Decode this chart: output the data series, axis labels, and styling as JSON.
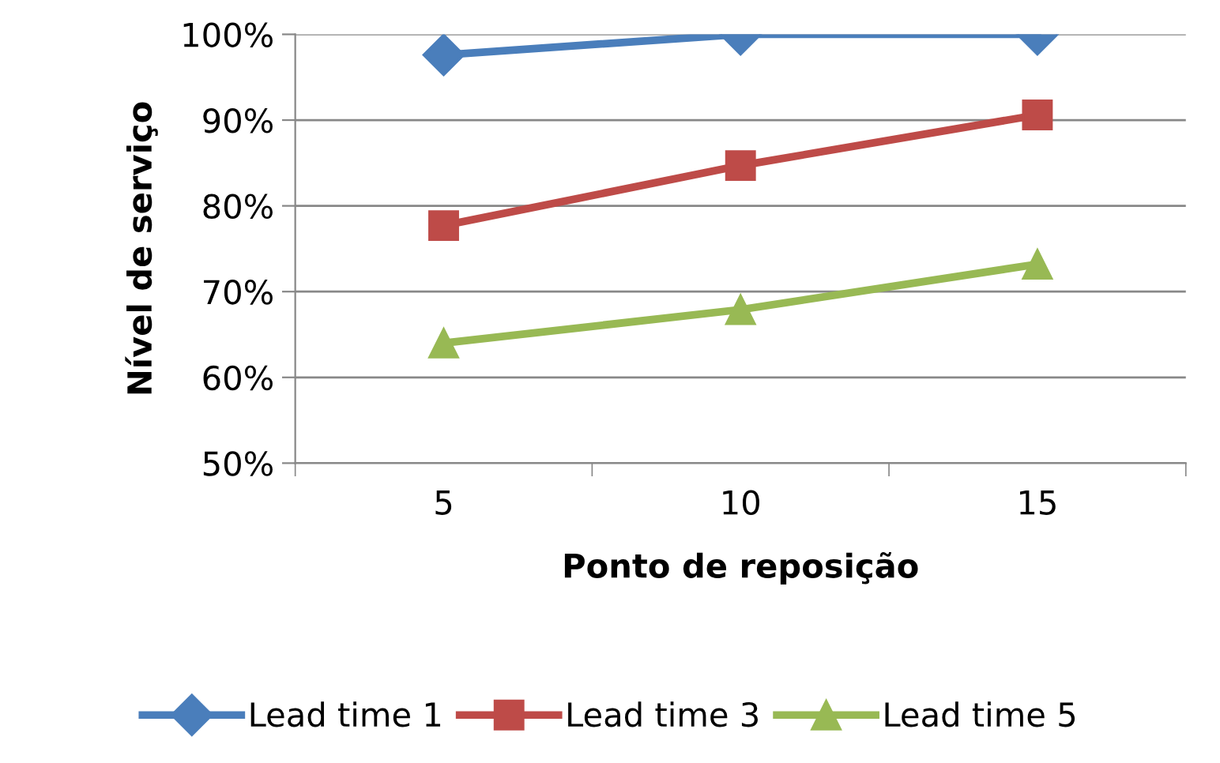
{
  "chart_data": {
    "type": "line",
    "xlabel": "Ponto de reposição",
    "ylabel": "Nível de serviço",
    "categories": [
      "5",
      "10",
      "15"
    ],
    "series": [
      {
        "name": "Lead time 1",
        "color": "#4a7ebb",
        "marker": "diamond",
        "values": [
          97.6,
          100,
          100
        ]
      },
      {
        "name": "Lead time 3",
        "color": "#be4b48",
        "marker": "square",
        "values": [
          77.7,
          84.7,
          90.6
        ]
      },
      {
        "name": "Lead time 5",
        "color": "#98b954",
        "marker": "triangle",
        "values": [
          64,
          67.9,
          73.2
        ]
      }
    ],
    "ylim": [
      50,
      100
    ],
    "yticks": [
      {
        "value": 50,
        "label": "50%"
      },
      {
        "value": 60,
        "label": "60%"
      },
      {
        "value": 70,
        "label": "70%"
      },
      {
        "value": 80,
        "label": "80%"
      },
      {
        "value": 90,
        "label": "90%"
      },
      {
        "value": 100,
        "label": "100%"
      }
    ],
    "grid": "y",
    "legend": "bottom",
    "line_style": "solid"
  }
}
